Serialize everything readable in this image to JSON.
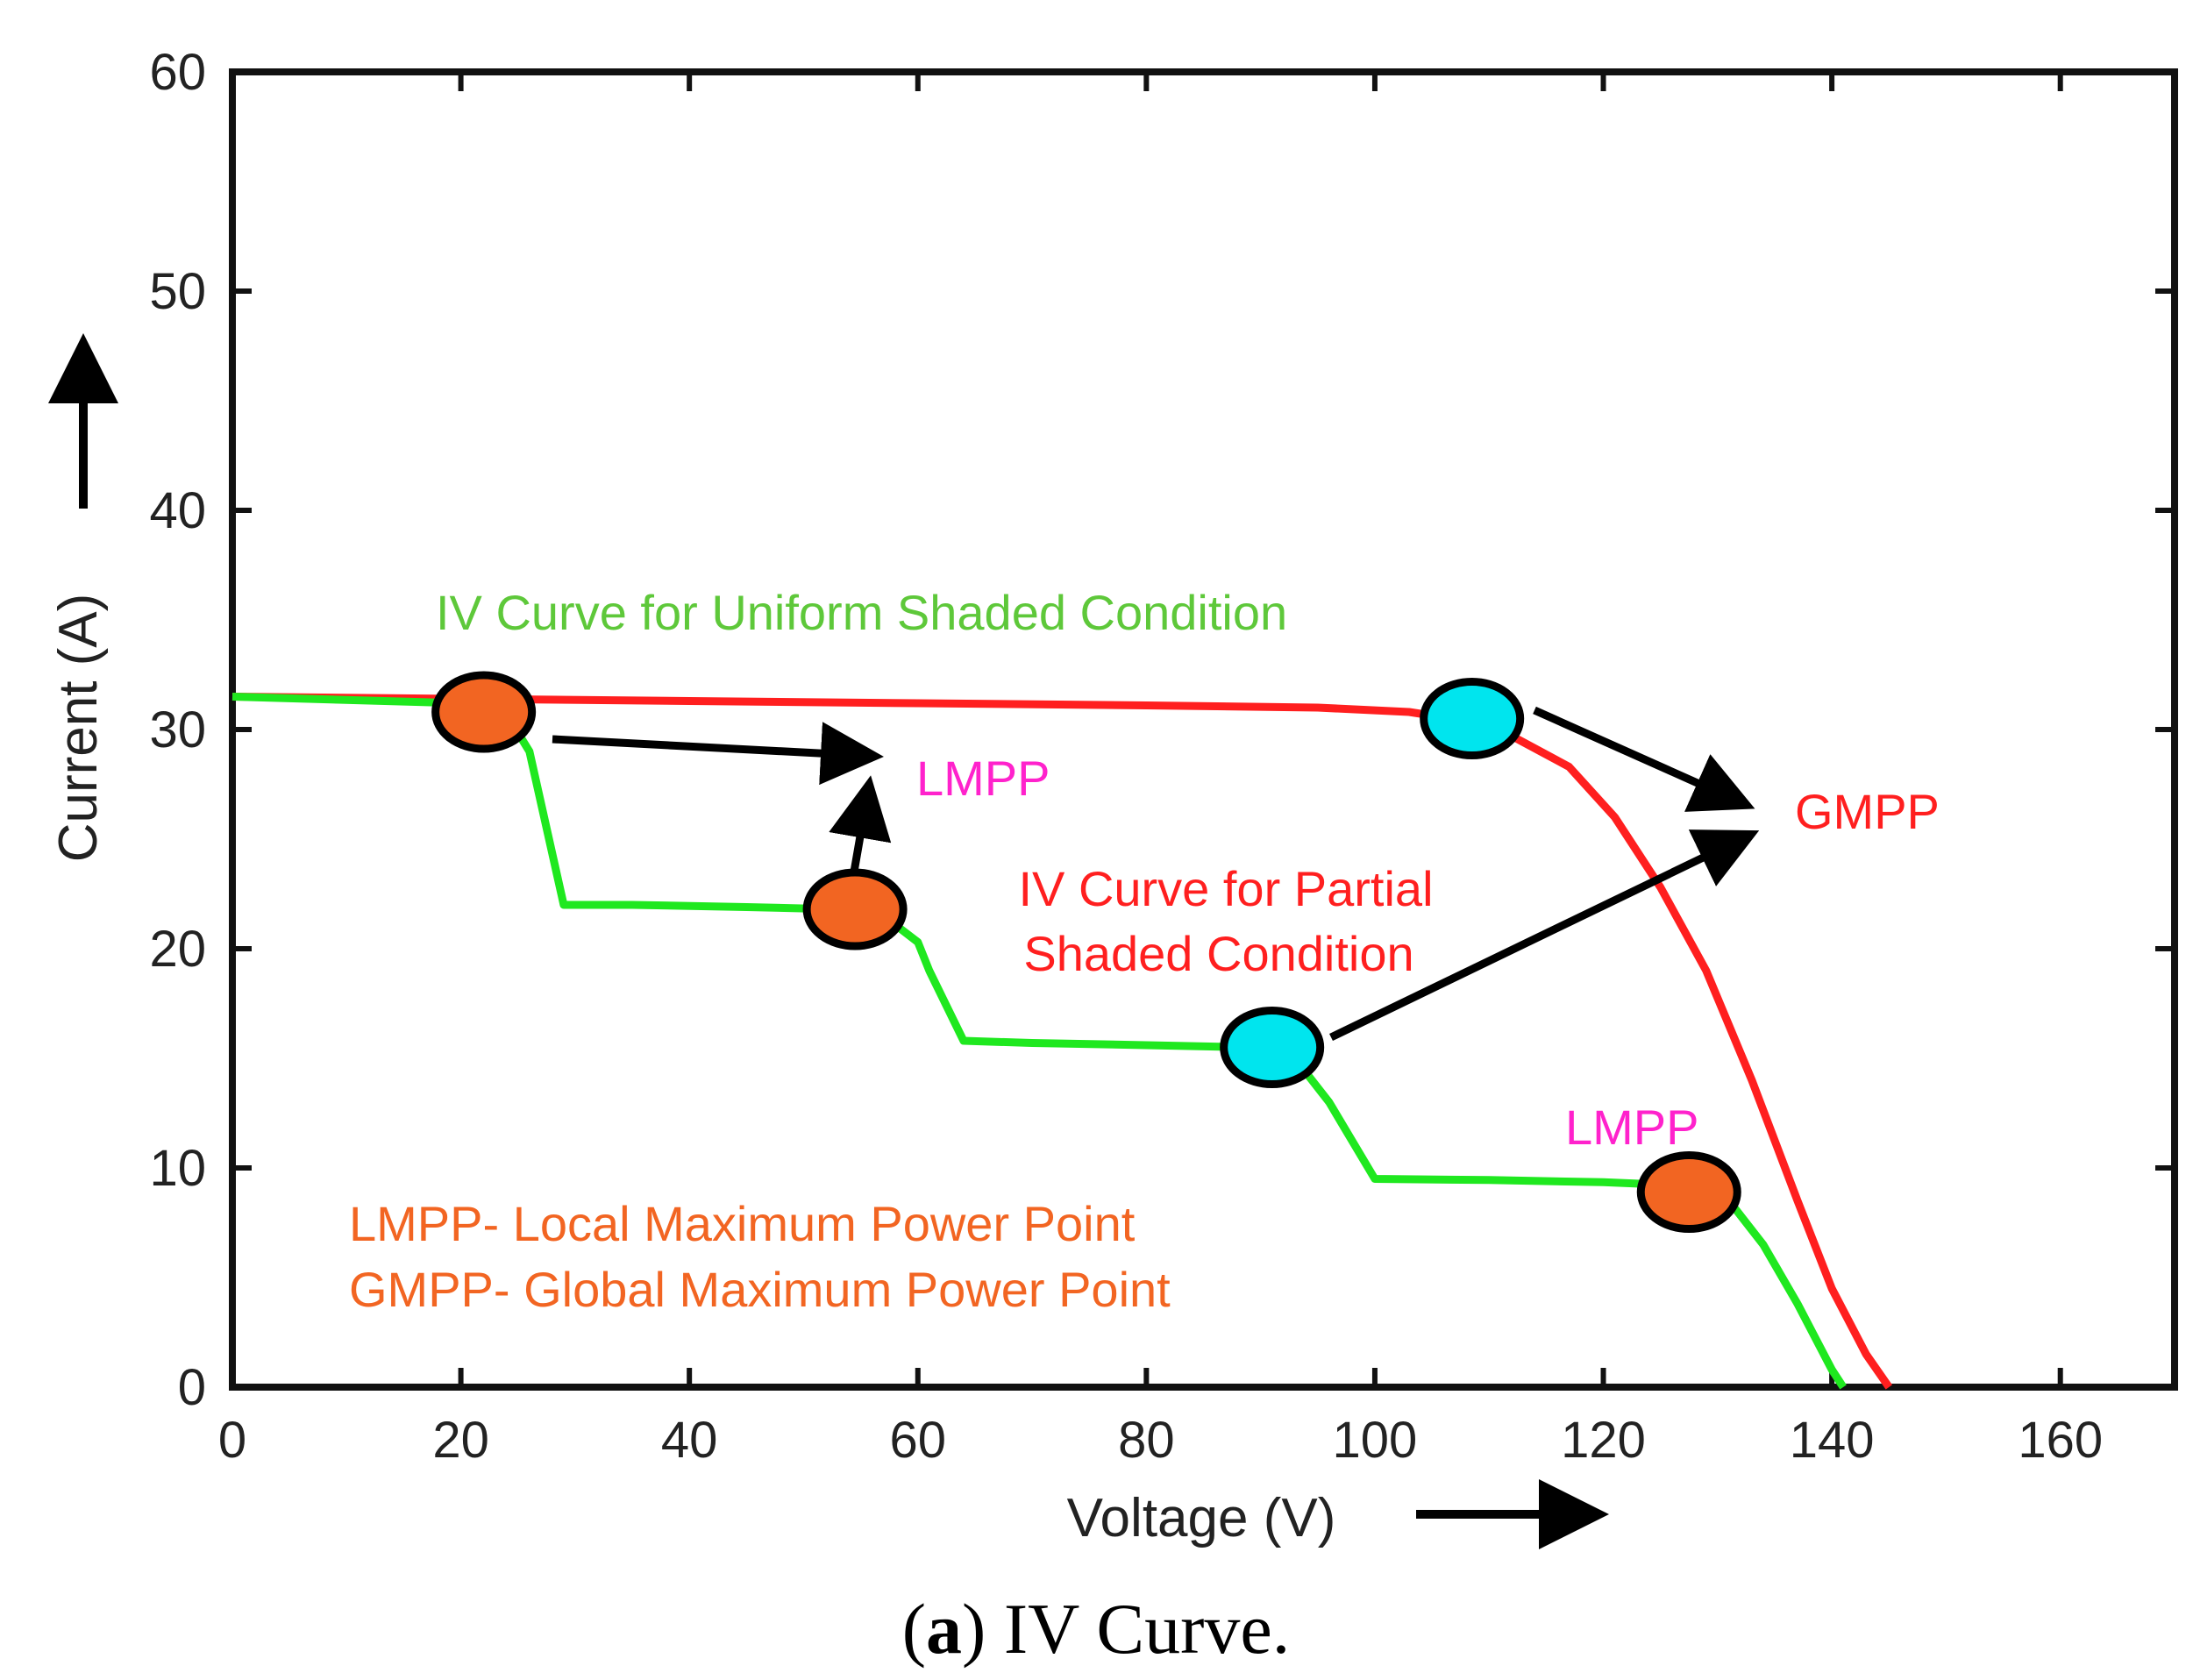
{
  "chart_data": {
    "type": "line",
    "xlabel": "Voltage (V)",
    "ylabel": "Current (A)",
    "xlim": [
      0,
      170
    ],
    "ylim": [
      0,
      60
    ],
    "x_ticks": [
      0,
      20,
      40,
      60,
      80,
      100,
      120,
      140,
      160
    ],
    "y_ticks": [
      0,
      10,
      20,
      30,
      40,
      50,
      60
    ],
    "series": [
      {
        "name": "IV Curve for Partial Shaded Condition",
        "color": "#ff1f1f",
        "points": [
          [
            0,
            31.5
          ],
          [
            20,
            31.4
          ],
          [
            40,
            31.3
          ],
          [
            60,
            31.2
          ],
          [
            80,
            31.1
          ],
          [
            95,
            31.0
          ],
          [
            103,
            30.8
          ],
          [
            108,
            30.4
          ],
          [
            112,
            29.7
          ],
          [
            117,
            28.3
          ],
          [
            121,
            26.0
          ],
          [
            125,
            22.8
          ],
          [
            129,
            19.0
          ],
          [
            133,
            14.0
          ],
          [
            137,
            8.5
          ],
          [
            140,
            4.5
          ],
          [
            143,
            1.5
          ],
          [
            145,
            0
          ]
        ]
      },
      {
        "name": "IV Curve for Uniform Shaded Condition",
        "color": "#1fe81f",
        "points": [
          [
            0,
            31.5
          ],
          [
            20,
            31.2
          ],
          [
            24,
            30.7
          ],
          [
            26,
            29.0
          ],
          [
            29,
            22.0
          ],
          [
            35,
            22.0
          ],
          [
            45,
            21.9
          ],
          [
            53,
            21.8
          ],
          [
            57,
            21.5
          ],
          [
            60,
            20.3
          ],
          [
            61,
            19.0
          ],
          [
            64,
            15.8
          ],
          [
            70,
            15.7
          ],
          [
            80,
            15.6
          ],
          [
            89,
            15.5
          ],
          [
            93,
            15.0
          ],
          [
            96,
            13.0
          ],
          [
            100,
            9.5
          ],
          [
            110,
            9.45
          ],
          [
            120,
            9.35
          ],
          [
            127,
            9.2
          ],
          [
            131,
            8.5
          ],
          [
            134,
            6.5
          ],
          [
            137,
            3.8
          ],
          [
            140,
            0.8
          ],
          [
            141,
            0
          ]
        ]
      }
    ],
    "markers": [
      {
        "name": "LMPP",
        "x": 22,
        "y": 30.8,
        "color": "#f26522"
      },
      {
        "name": "LMPP",
        "x": 54.5,
        "y": 21.8,
        "color": "#f26522"
      },
      {
        "name": "LMPP",
        "x": 127.5,
        "y": 8.9,
        "color": "#f26522"
      },
      {
        "name": "GMPP",
        "x": 108.5,
        "y": 30.5,
        "color": "#00e5ee"
      },
      {
        "name": "GMPP",
        "x": 91,
        "y": 15.5,
        "color": "#00e5ee"
      }
    ],
    "annotations": {
      "uniform_label": "IV Curve for Uniform Shaded Condition",
      "partial_label_line1": "IV Curve for Partial",
      "partial_label_line2": "Shaded Condition",
      "lmpp_label_upper": "LMPP",
      "lmpp_label_lower": "LMPP",
      "gmpp_label": "GMPP",
      "legend_line1": "LMPP- Local Maximum Power Point",
      "legend_line2": "GMPP- Global Maximum Power Point"
    },
    "colors": {
      "uniform_text": "#5ec83a",
      "partial_text": "#ff1f1f",
      "lmpp_text": "#ff22cc",
      "gmpp_text": "#ff1f1f",
      "legend_text": "#f26522"
    }
  },
  "caption": {
    "label": "a",
    "open": "(",
    "close": ")",
    "text": " IV Curve."
  }
}
